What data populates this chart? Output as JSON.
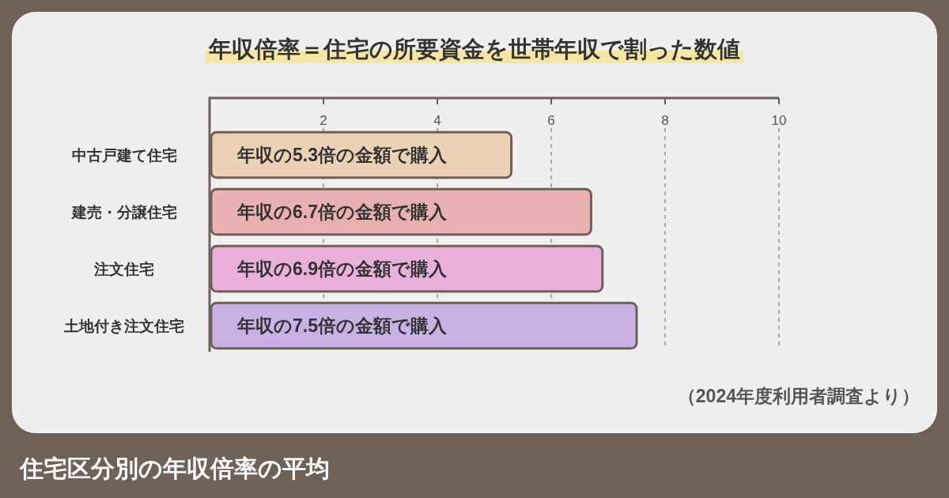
{
  "chart_data": {
    "type": "bar",
    "orientation": "horizontal",
    "title": "住宅区分別の年収倍率の平均",
    "subtitle": "年収倍率＝住宅の所要資金を世帯年収で割った数値",
    "categories": [
      "中古戸建て住宅",
      "建売・分譲住宅",
      "注文住宅",
      "土地付き注文住宅"
    ],
    "values": [
      5.3,
      6.7,
      6.9,
      7.5
    ],
    "colors": [
      "#ecd2b4",
      "#e9b1b1",
      "#e8b0db",
      "#c9b1e6"
    ],
    "value_labels": [
      "年収の5.3倍の金額で購入",
      "年収の6.7倍の金額で購入",
      "年収の6.9倍の金額で購入",
      "年収の7.5倍の金額で購入"
    ],
    "xlim": [
      0,
      10
    ],
    "xticks": [
      2,
      4,
      6,
      8,
      10
    ],
    "grid": "x",
    "annotations": [
      "（2024年度利用者調査より）"
    ]
  }
}
